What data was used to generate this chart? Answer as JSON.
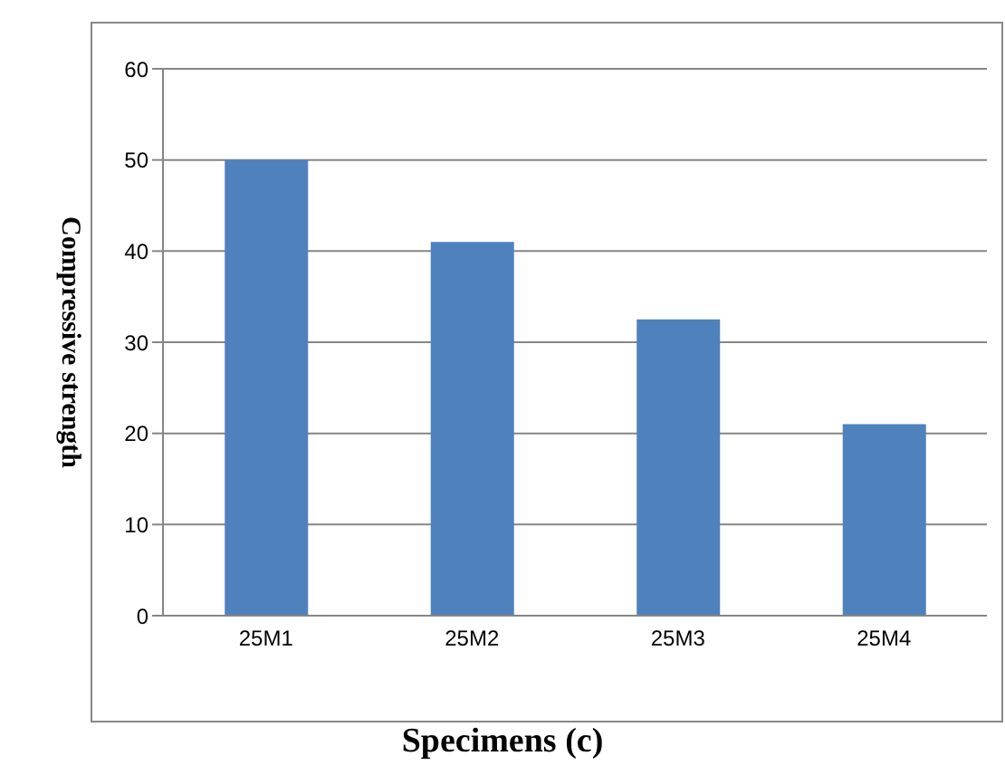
{
  "chart_data": {
    "type": "bar",
    "xlabel": "Specimens (c)",
    "ylabel": "Compressive strength",
    "categories": [
      "25M1",
      "25M2",
      "25M3",
      "25M4"
    ],
    "values": [
      50,
      41,
      32.5,
      21
    ],
    "color": "#4f81bd",
    "ylim": [
      0,
      60
    ],
    "yticks": [
      0,
      10,
      20,
      30,
      40,
      50,
      60
    ],
    "grid": "y"
  }
}
